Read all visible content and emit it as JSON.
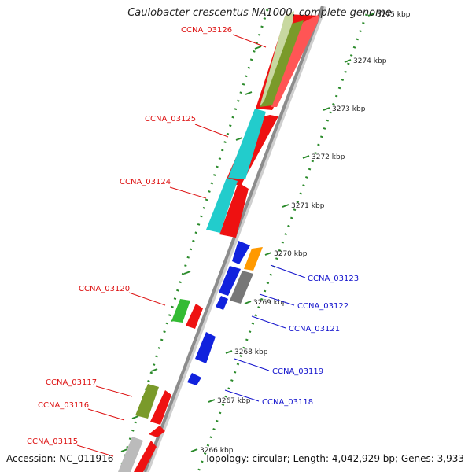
{
  "title": "Caulobacter crescentus NA1000, complete genome",
  "footer": {
    "accession": "Accession: NC_011916",
    "topology": "Topology: circular; Length: 4,042,929 bp; Genes: 3,933"
  },
  "scale": {
    "ticks": [
      "3275 kbp",
      "3274 kbp",
      "3273 kbp",
      "3272 kbp",
      "3271 kbp",
      "3270 kbp",
      "3269 kbp",
      "3268 kbp",
      "3267 kbp",
      "3266 kbp"
    ]
  },
  "genes": {
    "left_labels": [
      "CCNA_03126",
      "CCNA_03125",
      "CCNA_03124",
      "CCNA_03120",
      "CCNA_03117",
      "CCNA_03116",
      "CCNA_03115"
    ],
    "right_labels": [
      "CCNA_03123",
      "CCNA_03122",
      "CCNA_03121",
      "CCNA_03119",
      "CCNA_03118"
    ]
  },
  "colors": {
    "forward_label": "#dd1111",
    "reverse_label": "#1111cc",
    "cds": "#ee1111",
    "olive": "#7a9a2a",
    "cyan": "#22cccc",
    "green": "#33bb33",
    "blue": "#1122dd",
    "orange": "#ff9900",
    "gray": "#777777",
    "backbone": "#8c8c8c",
    "ruler": "#2a8a2a"
  }
}
